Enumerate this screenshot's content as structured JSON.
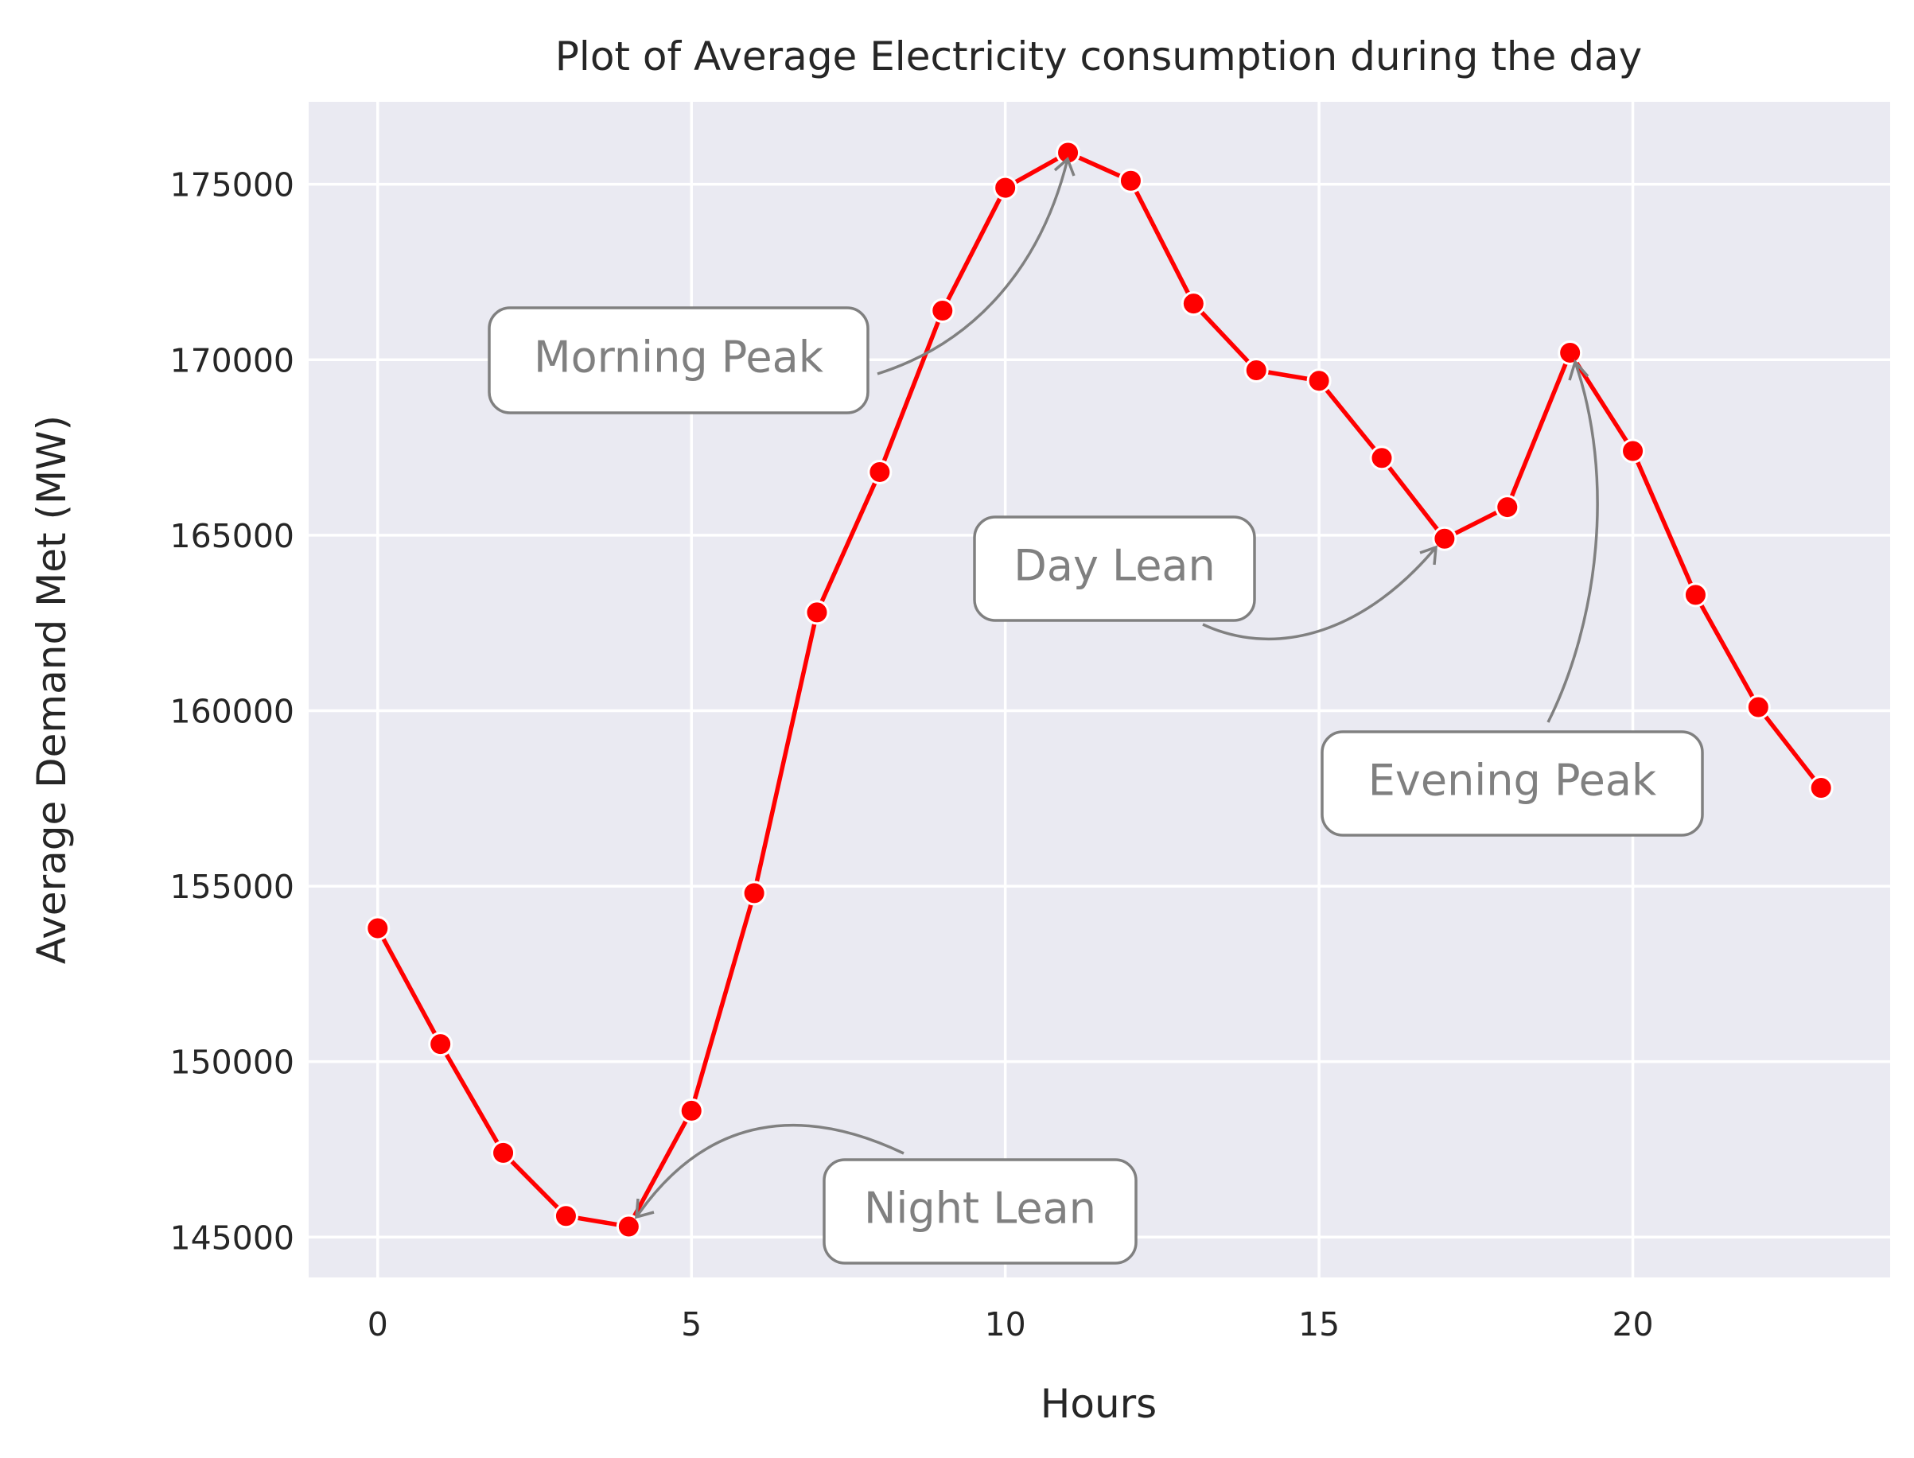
{
  "chart_data": {
    "type": "line",
    "title": "Plot of Average Electricity consumption during the day",
    "xlabel": "Hours",
    "ylabel": "Average Demand Met (MW)",
    "xlim": [
      -1.1,
      24.1
    ],
    "ylim": [
      143850,
      177350
    ],
    "xticks": [
      0,
      5,
      10,
      15,
      20
    ],
    "yticks": [
      145000,
      150000,
      155000,
      160000,
      165000,
      170000,
      175000
    ],
    "grid": true,
    "colors": {
      "background": "#eaeaf2",
      "grid": "#ffffff",
      "line": "#ff0000",
      "marker": "#ff0000",
      "marker_edge": "#ffffff",
      "annotation": "#808080"
    },
    "series": [
      {
        "x": [
          0,
          1,
          2,
          3,
          4,
          5,
          6,
          7,
          8,
          9,
          10,
          11,
          12,
          13,
          14,
          15,
          16,
          17,
          18,
          19,
          20,
          21,
          22,
          23
        ],
        "values": [
          153800,
          150500,
          147400,
          145600,
          145300,
          148600,
          154800,
          162800,
          166800,
          171400,
          174900,
          175900,
          175100,
          171600,
          169700,
          169400,
          167200,
          164900,
          165800,
          170200,
          167400,
          163300,
          160100,
          157800
        ]
      }
    ],
    "annotations": [
      {
        "text": "Morning Peak",
        "target_x": 11,
        "target_y": 175900
      },
      {
        "text": "Day Lean",
        "target_x": 17,
        "target_y": 164900
      },
      {
        "text": "Evening Peak",
        "target_x": 19,
        "target_y": 170200
      },
      {
        "text": "Night Lean",
        "target_x": 4,
        "target_y": 145300
      }
    ]
  }
}
